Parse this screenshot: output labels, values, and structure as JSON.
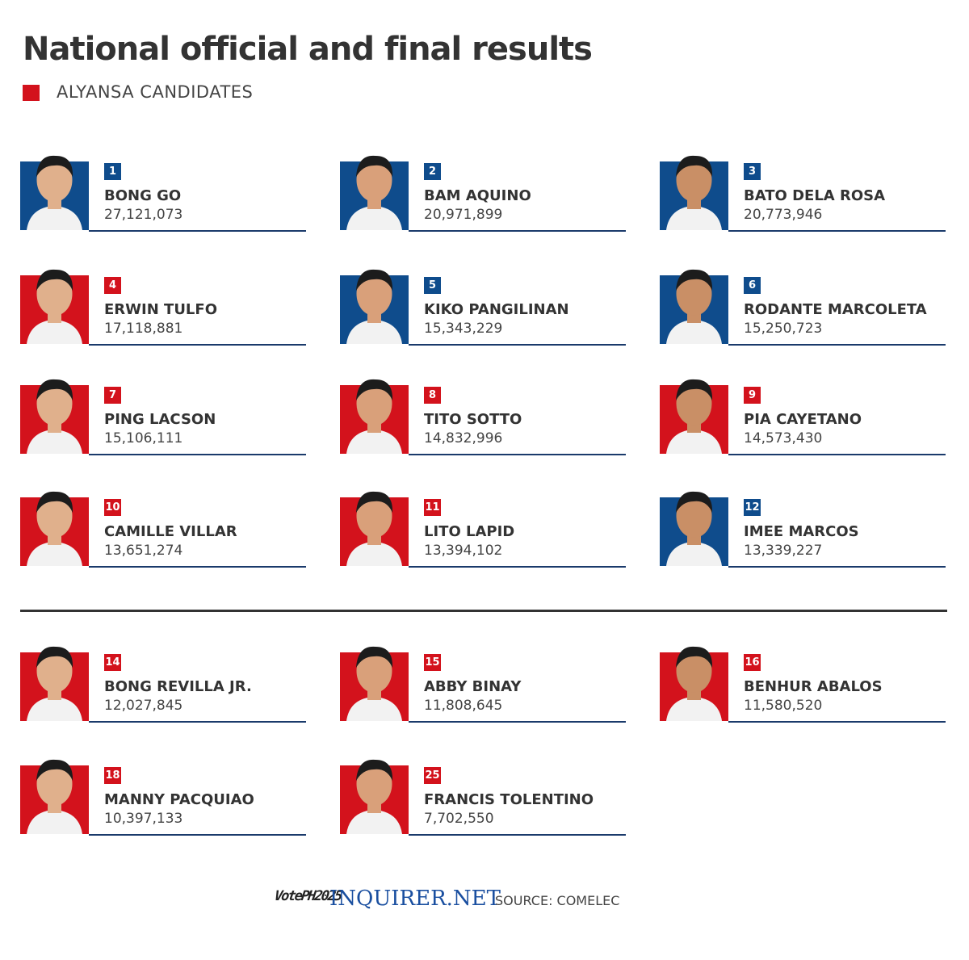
{
  "header": {
    "title": "National official and final results",
    "legend": "ALYANSA CANDIDATES"
  },
  "sections": [
    {
      "candidates": [
        {
          "rank": "1",
          "name": "BONG GO",
          "votes": "27,121,073",
          "alyansa": false
        },
        {
          "rank": "2",
          "name": "BAM AQUINO",
          "votes": "20,971,899",
          "alyansa": false
        },
        {
          "rank": "3",
          "name": "BATO DELA ROSA",
          "votes": "20,773,946",
          "alyansa": false
        },
        {
          "rank": "4",
          "name": "ERWIN TULFO",
          "votes": "17,118,881",
          "alyansa": true
        },
        {
          "rank": "5",
          "name": "KIKO PANGILINAN",
          "votes": "15,343,229",
          "alyansa": false
        },
        {
          "rank": "6",
          "name": "RODANTE MARCOLETA",
          "votes": "15,250,723",
          "alyansa": false
        },
        {
          "rank": "7",
          "name": "PING LACSON",
          "votes": "15,106,111",
          "alyansa": true
        },
        {
          "rank": "8",
          "name": "TITO SOTTO",
          "votes": "14,832,996",
          "alyansa": true
        },
        {
          "rank": "9",
          "name": "PIA CAYETANO",
          "votes": "14,573,430",
          "alyansa": true
        },
        {
          "rank": "10",
          "name": "CAMILLE VILLAR",
          "votes": "13,651,274",
          "alyansa": true
        },
        {
          "rank": "11",
          "name": "LITO LAPID",
          "votes": "13,394,102",
          "alyansa": true
        },
        {
          "rank": "12",
          "name": "IMEE MARCOS",
          "votes": "13,339,227",
          "alyansa": false
        }
      ]
    },
    {
      "candidates": [
        {
          "rank": "14",
          "name": "BONG REVILLA JR.",
          "votes": "12,027,845",
          "alyansa": true
        },
        {
          "rank": "15",
          "name": "ABBY BINAY",
          "votes": "11,808,645",
          "alyansa": true
        },
        {
          "rank": "16",
          "name": "BENHUR ABALOS",
          "votes": "11,580,520",
          "alyansa": true
        },
        {
          "rank": "18",
          "name": "MANNY PACQUIAO",
          "votes": "10,397,133",
          "alyansa": true
        },
        {
          "rank": "25",
          "name": "FRANCIS TOLENTINO",
          "votes": "7,702,550",
          "alyansa": true
        }
      ]
    }
  ],
  "footer": {
    "logo": "VotePH2025",
    "brand": "INQUIRER.NET",
    "source": "SOURCE: COMELEC"
  }
}
